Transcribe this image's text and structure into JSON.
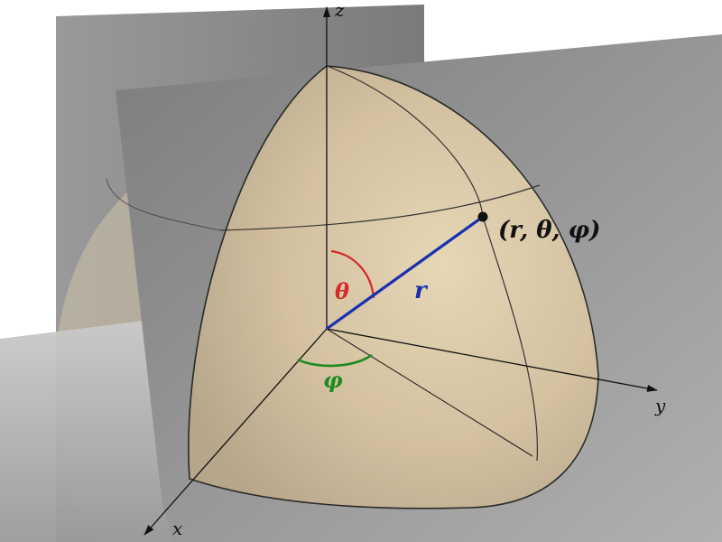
{
  "axes": {
    "x_label": "x",
    "y_label": "y",
    "z_label": "z"
  },
  "point": {
    "label": "(r, θ, φ)"
  },
  "radius": {
    "label": "r",
    "color": "#1a2fb0"
  },
  "polar_angle": {
    "label": "θ",
    "color": "#d42a2a"
  },
  "azimuth_angle": {
    "label": "φ",
    "color": "#1f8a1f"
  },
  "colors": {
    "sphere_fill": "#d8c4a0",
    "plane_fill": "#8c8c8c",
    "outline": "#2a2a2a"
  }
}
